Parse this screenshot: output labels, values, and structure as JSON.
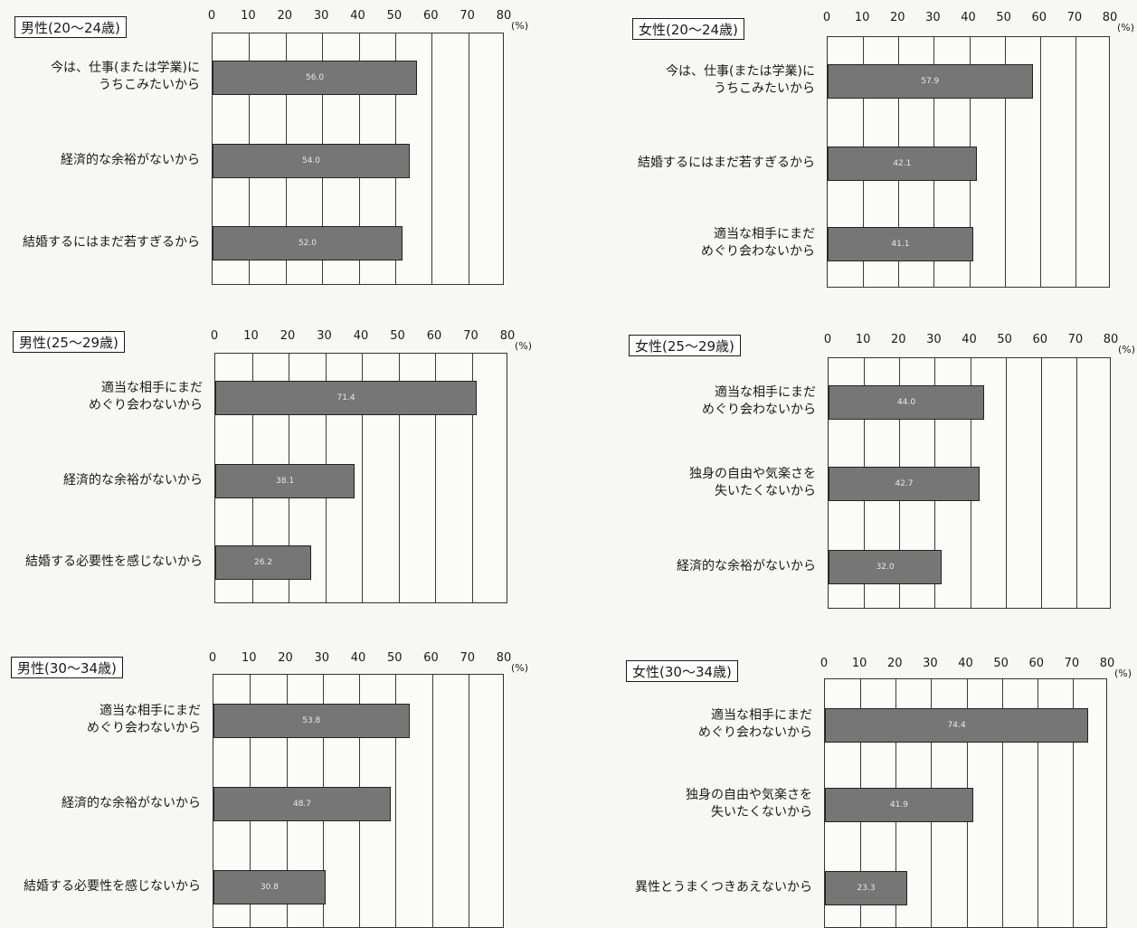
{
  "chart_data": [
    {
      "type": "bar",
      "title": "男性(20～24歳)",
      "categories": [
        "今は、仕事(または学業)に\nうちこみたいから",
        "経済的な余裕がないから",
        "結婚するにはまだ若すぎるから"
      ],
      "values": [
        56.0,
        54.0,
        52.0
      ],
      "value_labels": [
        "56.0",
        "54.0",
        "52.0"
      ],
      "xlim": [
        0,
        80
      ],
      "ticks": [
        "0",
        "10",
        "20",
        "30",
        "40",
        "50",
        "60",
        "70",
        "80"
      ],
      "unit": "(%)",
      "orientation": "horizontal",
      "grid": true
    },
    {
      "type": "bar",
      "title": "女性(20～24歳)",
      "categories": [
        "今は、仕事(または学業)に\nうちこみたいから",
        "結婚するにはまだ若すぎるから",
        "適当な相手にまだ\nめぐり会わないから"
      ],
      "values": [
        57.9,
        42.1,
        41.1
      ],
      "value_labels": [
        "57.9",
        "42.1",
        "41.1"
      ],
      "xlim": [
        0,
        80
      ],
      "ticks": [
        "0",
        "10",
        "20",
        "30",
        "40",
        "50",
        "60",
        "70",
        "80"
      ],
      "unit": "(%)",
      "orientation": "horizontal",
      "grid": true
    },
    {
      "type": "bar",
      "title": "男性(25～29歳)",
      "categories": [
        "適当な相手にまだ\nめぐり会わないから",
        "経済的な余裕がないから",
        "結婚する必要性を感じないから"
      ],
      "values": [
        71.4,
        38.1,
        26.2
      ],
      "value_labels": [
        "71.4",
        "38.1",
        "26.2"
      ],
      "xlim": [
        0,
        80
      ],
      "ticks": [
        "0",
        "10",
        "20",
        "30",
        "40",
        "50",
        "60",
        "70",
        "80"
      ],
      "unit": "(%)",
      "orientation": "horizontal",
      "grid": true
    },
    {
      "type": "bar",
      "title": "女性(25～29歳)",
      "categories": [
        "適当な相手にまだ\nめぐり会わないから",
        "独身の自由や気楽さを\n失いたくないから",
        "経済的な余裕がないから"
      ],
      "values": [
        44.0,
        42.7,
        32.0
      ],
      "value_labels": [
        "44.0",
        "42.7",
        "32.0"
      ],
      "xlim": [
        0,
        80
      ],
      "ticks": [
        "0",
        "10",
        "20",
        "30",
        "40",
        "50",
        "60",
        "70",
        "80"
      ],
      "unit": "(%)",
      "orientation": "horizontal",
      "grid": true
    },
    {
      "type": "bar",
      "title": "男性(30～34歳)",
      "categories": [
        "適当な相手にまだ\nめぐり会わないから",
        "経済的な余裕がないから",
        "結婚する必要性を感じないから"
      ],
      "values": [
        53.8,
        48.7,
        30.8
      ],
      "value_labels": [
        "53.8",
        "48.7",
        "30.8"
      ],
      "xlim": [
        0,
        80
      ],
      "ticks": [
        "0",
        "10",
        "20",
        "30",
        "40",
        "50",
        "60",
        "70",
        "80"
      ],
      "unit": "(%)",
      "orientation": "horizontal",
      "grid": true
    },
    {
      "type": "bar",
      "title": "女性(30～34歳)",
      "categories": [
        "適当な相手にまだ\nめぐり会わないから",
        "独身の自由や気楽さを\n失いたくないから",
        "異性とうまくつきあえないから"
      ],
      "values": [
        74.4,
        41.9,
        23.3
      ],
      "value_labels": [
        "74.4",
        "41.9",
        "23.3"
      ],
      "xlim": [
        0,
        80
      ],
      "ticks": [
        "0",
        "10",
        "20",
        "30",
        "40",
        "50",
        "60",
        "70",
        "80"
      ],
      "unit": "(%)",
      "orientation": "horizontal",
      "grid": true
    }
  ]
}
